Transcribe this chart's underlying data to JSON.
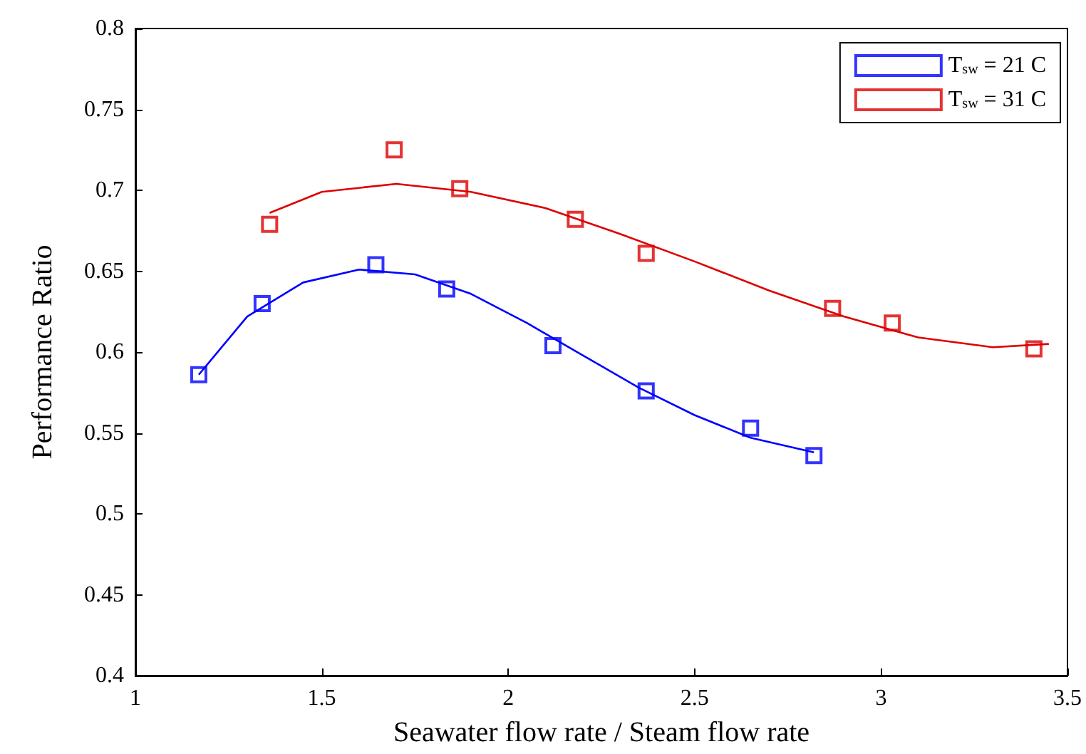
{
  "chart_data": {
    "type": "scatter",
    "xlabel": "Seawater flow rate / Steam flow rate",
    "ylabel": "Performance Ratio",
    "xlim": [
      1,
      3.5
    ],
    "xticks": [
      1,
      1.5,
      2,
      2.5,
      3,
      3.5
    ],
    "ylim": [
      0.4,
      0.8
    ],
    "yticks": [
      0.4,
      0.45,
      0.5,
      0.55,
      0.6,
      0.65,
      0.7,
      0.75,
      0.8
    ],
    "grid": false,
    "legend": "top right",
    "marker": "square",
    "series": [
      {
        "name": "T$_{sw}$ = 21 C",
        "color": "#0000ff",
        "x": [
          1.17,
          1.34,
          1.645,
          1.835,
          2.12,
          2.37,
          2.65,
          2.82
        ],
        "values": [
          0.586,
          0.63,
          0.654,
          0.639,
          0.604,
          0.576,
          0.553,
          0.536
        ]
      },
      {
        "name": "T$_{sw}$ = 31 C",
        "color": "#dd0000",
        "x": [
          1.36,
          1.694,
          1.87,
          2.18,
          2.37,
          2.87,
          3.03,
          3.41
        ],
        "values": [
          0.679,
          0.725,
          0.701,
          0.682,
          0.661,
          0.627,
          0.618,
          0.602
        ]
      },
      {
        "type": "line",
        "color": "#0000ff",
        "marker": "none",
        "x": [
          1.17,
          1.3,
          1.45,
          1.6,
          1.75,
          1.9,
          2.05,
          2.2,
          2.35,
          2.5,
          2.65,
          2.82
        ],
        "values": [
          0.586,
          0.622,
          0.643,
          0.651,
          0.648,
          0.636,
          0.618,
          0.598,
          0.578,
          0.561,
          0.547,
          0.538
        ]
      },
      {
        "type": "line",
        "color": "#dd0000",
        "marker": "none",
        "x": [
          1.36,
          1.5,
          1.7,
          1.9,
          2.1,
          2.3,
          2.5,
          2.7,
          2.9,
          3.1,
          3.3,
          3.45
        ],
        "values": [
          0.686,
          0.699,
          0.704,
          0.699,
          0.689,
          0.673,
          0.656,
          0.638,
          0.622,
          0.609,
          0.603,
          0.605
        ]
      }
    ]
  }
}
